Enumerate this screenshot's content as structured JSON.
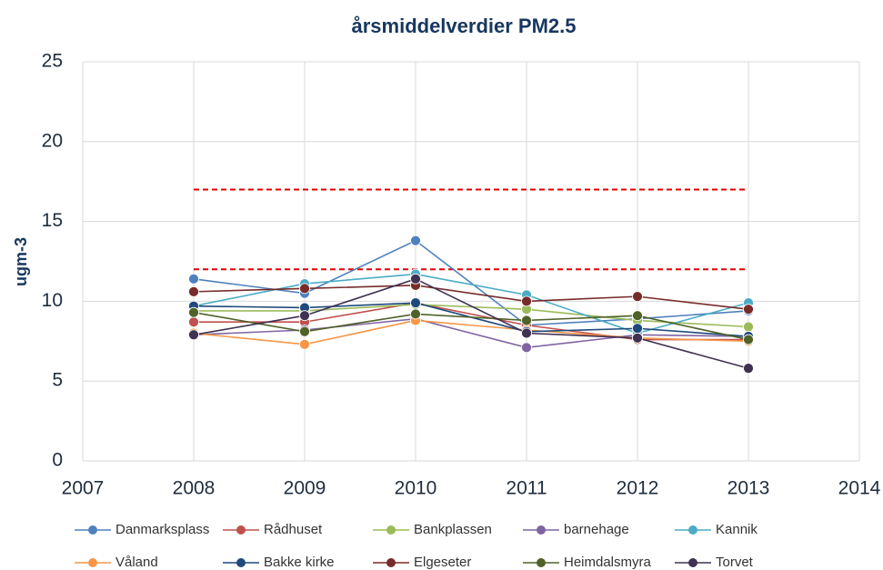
{
  "chart_data": {
    "type": "line",
    "title": "årsmiddelverdier PM2.5",
    "ylabel": "ugm-3",
    "x": [
      2008,
      2009,
      2010,
      2011,
      2012,
      2013
    ],
    "xlim": [
      2007,
      2014
    ],
    "xticks": [
      2007,
      2008,
      2009,
      2010,
      2011,
      2012,
      2013,
      2014
    ],
    "ylim": [
      0,
      25
    ],
    "yticks": [
      0,
      5,
      10,
      15,
      20,
      25
    ],
    "grid": true,
    "legend": "bottom",
    "series": [
      {
        "name": "Danmarksplass",
        "color": "#4f81bd",
        "values": [
          11.4,
          10.5,
          13.8,
          8.5,
          8.9,
          9.4
        ]
      },
      {
        "name": "Rådhuset",
        "color": "#c0504d",
        "values": [
          8.7,
          8.7,
          9.9,
          8.5,
          7.6,
          7.6
        ]
      },
      {
        "name": "Bankplassen",
        "color": "#9bbb59",
        "values": [
          9.4,
          9.4,
          9.8,
          9.5,
          8.8,
          8.4
        ]
      },
      {
        "name": "barnehage",
        "color": "#8064a2",
        "values": [
          7.9,
          8.2,
          8.9,
          7.1,
          7.9,
          7.8
        ]
      },
      {
        "name": "Kannik",
        "color": "#4bacc6",
        "values": [
          9.7,
          11.1,
          11.7,
          10.4,
          8.0,
          9.9
        ]
      },
      {
        "name": "Våland",
        "color": "#f79646",
        "values": [
          8.0,
          7.3,
          8.8,
          8.2,
          7.7,
          7.5
        ]
      },
      {
        "name": "Bakke kirke",
        "color": "#1f497d",
        "values": [
          9.7,
          9.6,
          9.9,
          8.1,
          8.3,
          7.8
        ]
      },
      {
        "name": "Elgeseter",
        "color": "#772c2a",
        "values": [
          10.6,
          10.8,
          11.0,
          10.0,
          10.3,
          9.5
        ]
      },
      {
        "name": "Heimdalsmyra",
        "color": "#4f6228",
        "values": [
          9.3,
          8.1,
          9.2,
          8.8,
          9.1,
          7.6
        ]
      },
      {
        "name": "Torvet",
        "color": "#3f3151",
        "values": [
          7.9,
          9.1,
          11.4,
          8.0,
          7.7,
          5.8
        ]
      }
    ],
    "reference_lines": [
      {
        "y": 17,
        "x": [
          2008,
          2013
        ],
        "color": "#e00000"
      },
      {
        "y": 12,
        "x": [
          2008,
          2013
        ],
        "color": "#e00000"
      }
    ]
  }
}
